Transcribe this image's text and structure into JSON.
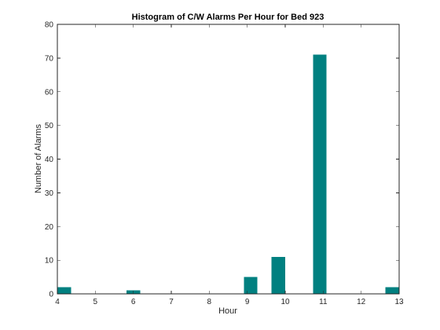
{
  "chart_data": {
    "type": "bar",
    "title": "Histogram of C/W Alarms Per Hour for Bed 923",
    "xlabel": "Hour",
    "ylabel": "Number of Alarms",
    "xlim": [
      4,
      13
    ],
    "ylim": [
      0,
      80
    ],
    "xticks": [
      4,
      5,
      6,
      7,
      8,
      9,
      10,
      11,
      12,
      13
    ],
    "yticks": [
      0,
      10,
      20,
      30,
      40,
      50,
      60,
      70,
      80
    ],
    "bar_width": 0.36,
    "grid": false,
    "bars": [
      {
        "x": 4.18,
        "value": 2
      },
      {
        "x": 6.0,
        "value": 1
      },
      {
        "x": 9.09,
        "value": 5
      },
      {
        "x": 9.82,
        "value": 11
      },
      {
        "x": 10.91,
        "value": 71
      },
      {
        "x": 12.82,
        "value": 2
      }
    ],
    "colors": {
      "bar_fill": "#008080",
      "axis": "#262626"
    }
  }
}
